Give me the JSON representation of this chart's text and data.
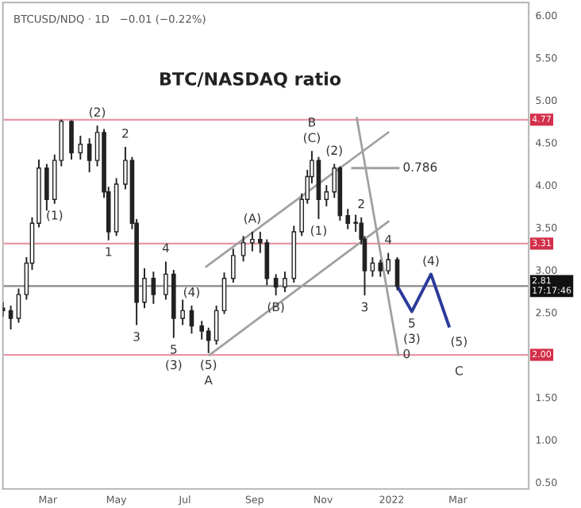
{
  "chart_data": {
    "type": "candlestick",
    "title": "BTC/NASDAQ ratio",
    "subtitle": "BTCUSD/NDQ · 1D   −0.01 (−0.22%)",
    "color": "#222222",
    "x": [
      "2021-01-20",
      "2021-01-27",
      "2021-02-03",
      "2021-02-10",
      "2021-02-15",
      "2021-02-21",
      "2021-02-28",
      "2021-03-07",
      "2021-03-13",
      "2021-03-22",
      "2021-03-30",
      "2021-04-07",
      "2021-04-14",
      "2021-04-20",
      "2021-04-24",
      "2021-05-01",
      "2021-05-09",
      "2021-05-15",
      "2021-05-19",
      "2021-05-26",
      "2021-06-03",
      "2021-06-14",
      "2021-06-21",
      "2021-06-29",
      "2021-07-07",
      "2021-07-16",
      "2021-07-22",
      "2021-07-29",
      "2021-08-05",
      "2021-08-13",
      "2021-08-22",
      "2021-08-30",
      "2021-09-06",
      "2021-09-12",
      "2021-09-20",
      "2021-09-28",
      "2021-10-06",
      "2021-10-13",
      "2021-10-18",
      "2021-10-22",
      "2021-10-28",
      "2021-11-04",
      "2021-11-11",
      "2021-11-16",
      "2021-11-23",
      "2021-11-30",
      "2021-12-05",
      "2021-12-08",
      "2021-12-15",
      "2021-12-22",
      "2021-12-29",
      "2022-01-06"
    ],
    "ohlc": [
      [
        2.55,
        2.62,
        2.45,
        2.52
      ],
      [
        2.52,
        2.58,
        2.3,
        2.43
      ],
      [
        2.43,
        2.78,
        2.38,
        2.71
      ],
      [
        2.71,
        3.15,
        2.65,
        3.08
      ],
      [
        3.08,
        3.62,
        3.0,
        3.55
      ],
      [
        3.55,
        4.3,
        3.5,
        4.2
      ],
      [
        4.2,
        4.25,
        3.7,
        3.83
      ],
      [
        3.83,
        4.36,
        3.78,
        4.29
      ],
      [
        4.29,
        4.77,
        4.22,
        4.75
      ],
      [
        4.75,
        4.76,
        4.3,
        4.38
      ],
      [
        4.38,
        4.58,
        4.3,
        4.48
      ],
      [
        4.48,
        4.55,
        4.15,
        4.29
      ],
      [
        4.29,
        4.7,
        4.22,
        4.62
      ],
      [
        4.62,
        4.66,
        3.85,
        3.92
      ],
      [
        3.92,
        3.98,
        3.35,
        3.45
      ],
      [
        3.45,
        4.08,
        3.4,
        4.01
      ],
      [
        4.01,
        4.45,
        3.95,
        4.29
      ],
      [
        4.29,
        4.33,
        3.48,
        3.55
      ],
      [
        3.55,
        3.6,
        2.35,
        2.62
      ],
      [
        2.62,
        3.02,
        2.55,
        2.9
      ],
      [
        2.9,
        2.98,
        2.6,
        2.71
      ],
      [
        2.71,
        3.1,
        2.65,
        2.95
      ],
      [
        2.95,
        3.0,
        2.2,
        2.43
      ],
      [
        2.43,
        2.65,
        2.35,
        2.52
      ],
      [
        2.52,
        2.58,
        2.25,
        2.34
      ],
      [
        2.34,
        2.4,
        2.18,
        2.28
      ],
      [
        2.28,
        2.32,
        2.02,
        2.17
      ],
      [
        2.17,
        2.58,
        2.12,
        2.52
      ],
      [
        2.52,
        2.97,
        2.48,
        2.9
      ],
      [
        2.9,
        3.25,
        2.85,
        3.17
      ],
      [
        3.17,
        3.4,
        3.1,
        3.32
      ],
      [
        3.32,
        3.45,
        3.22,
        3.36
      ],
      [
        3.36,
        3.45,
        3.2,
        3.32
      ],
      [
        3.32,
        3.36,
        2.82,
        2.9
      ],
      [
        2.9,
        2.95,
        2.7,
        2.8
      ],
      [
        2.8,
        2.98,
        2.74,
        2.9
      ],
      [
        2.9,
        3.52,
        2.85,
        3.45
      ],
      [
        3.45,
        3.9,
        3.4,
        3.83
      ],
      [
        3.83,
        4.18,
        3.78,
        4.1
      ],
      [
        4.1,
        4.4,
        4.02,
        4.29
      ],
      [
        4.29,
        4.33,
        3.6,
        3.83
      ],
      [
        3.83,
        4.0,
        3.75,
        3.92
      ],
      [
        3.92,
        4.25,
        3.85,
        4.2
      ],
      [
        4.2,
        4.22,
        3.58,
        3.64
      ],
      [
        3.64,
        3.72,
        3.48,
        3.55
      ],
      [
        3.55,
        3.65,
        3.45,
        3.55
      ],
      [
        3.55,
        3.62,
        3.3,
        3.36
      ],
      [
        3.36,
        3.4,
        2.7,
        2.99
      ],
      [
        2.99,
        3.15,
        2.92,
        3.08
      ],
      [
        3.08,
        3.12,
        2.92,
        2.99
      ],
      [
        2.99,
        3.2,
        2.95,
        3.12
      ],
      [
        3.12,
        3.15,
        2.76,
        2.81
      ]
    ],
    "series": [
      {
        "type": "line",
        "color": "#a0a0a0",
        "x": [
          "2021-07-23",
          "2021-12-29"
        ],
        "values": [
          2.0,
          3.57
        ]
      },
      {
        "type": "line",
        "color": "#a0a0a0",
        "x": [
          "2021-07-20",
          "2021-12-29"
        ],
        "values": [
          3.04,
          4.62
        ]
      },
      {
        "type": "line",
        "color": "#a0a0a0",
        "x": [
          "2021-12-01",
          "2022-01-07"
        ],
        "values": [
          4.79,
          2.0
        ]
      },
      {
        "type": "line",
        "color": "#a0a0a0",
        "x": [
          "2021-11-27",
          "2022-01-07"
        ],
        "values": [
          4.2,
          4.2
        ]
      },
      {
        "type": "line",
        "color": "#2a3a9a",
        "x": [
          "2022-01-06",
          "2022-01-19",
          "2022-02-05",
          "2022-02-21"
        ],
        "values": [
          2.81,
          2.51,
          2.95,
          2.34
        ]
      }
    ],
    "ref_lines": [
      {
        "axis": "y",
        "value": 4.77,
        "label": "4.77",
        "color": "#d32f4a"
      },
      {
        "axis": "y",
        "value": 3.31,
        "label": "3.31",
        "color": "#d32f4a"
      },
      {
        "axis": "y",
        "value": 2.0,
        "label": "2.00",
        "color": "#d32f4a"
      },
      {
        "axis": "y",
        "value": 2.81,
        "label": "2.81\n17:17:46",
        "color": "#111111"
      }
    ],
    "annotations": [
      {
        "text": "(2)",
        "x": "2021-04-14",
        "y": 4.7
      },
      {
        "text": "(1)",
        "x": "2021-03-07",
        "y": 3.78
      },
      {
        "text": "2",
        "x": "2021-05-09",
        "y": 4.45
      },
      {
        "text": "1",
        "x": "2021-04-24",
        "y": 3.35
      },
      {
        "text": "3",
        "x": "2021-05-19",
        "y": 2.35
      },
      {
        "text": "4",
        "x": "2021-06-14",
        "y": 3.1
      },
      {
        "text": "5",
        "x": "2021-06-21",
        "y": 2.2
      },
      {
        "text": "(3)",
        "x": "2021-06-21",
        "y": 2.2
      },
      {
        "text": "(4)",
        "x": "2021-07-07",
        "y": 2.58
      },
      {
        "text": "(5)",
        "x": "2021-07-22",
        "y": 2.02
      },
      {
        "text": "A",
        "x": "2021-07-22",
        "y": 2.02
      },
      {
        "text": "(A)",
        "x": "2021-08-30",
        "y": 3.45
      },
      {
        "text": "(B)",
        "x": "2021-09-20",
        "y": 2.7
      },
      {
        "text": "(C)",
        "x": "2021-10-22",
        "y": 4.4
      },
      {
        "text": "B",
        "x": "2021-10-22",
        "y": 4.4
      },
      {
        "text": "(2)",
        "x": "2021-11-11",
        "y": 4.25
      },
      {
        "text": "(1)",
        "x": "2021-10-28",
        "y": 3.6
      },
      {
        "text": "2",
        "x": "2021-12-05",
        "y": 3.62
      },
      {
        "text": "3",
        "x": "2021-12-08",
        "y": 2.7
      },
      {
        "text": "4",
        "x": "2021-12-29",
        "y": 3.2
      },
      {
        "text": "(4)",
        "x": "2022-02-05",
        "y": 2.95
      },
      {
        "text": "5",
        "x": "2022-01-19",
        "y": 2.51
      },
      {
        "text": "(3)",
        "x": "2022-01-19",
        "y": 2.51
      },
      {
        "text": "(5)",
        "x": "2022-03-02",
        "y": 2.0
      },
      {
        "text": "C",
        "x": "2022-03-02",
        "y": 2.0
      },
      {
        "text": "0.786",
        "x": "2022-01-07",
        "y": 4.2
      },
      {
        "text": "0",
        "x": "2022-01-07",
        "y": 2.0
      }
    ],
    "xlim": [
      "2021-01-20",
      "2022-05-03"
    ],
    "xticks": [
      {
        "value": "2021-03-01",
        "label": "Mar"
      },
      {
        "value": "2021-05-01",
        "label": "May"
      },
      {
        "value": "2021-07-01",
        "label": "Jul"
      },
      {
        "value": "2021-09-01",
        "label": "Sep"
      },
      {
        "value": "2021-11-01",
        "label": "Nov"
      },
      {
        "value": "2022-01-01",
        "label": "2022"
      },
      {
        "value": "2022-03-01",
        "label": "Mar"
      }
    ],
    "ylim": [
      0.42,
      6.15
    ],
    "yticks": [
      {
        "value": 0.5,
        "label": "0.50"
      },
      {
        "value": 1.0,
        "label": "1.00"
      },
      {
        "value": 1.5,
        "label": "1.50"
      },
      {
        "value": 2.0,
        "label": null
      },
      {
        "value": 2.5,
        "label": "2.50"
      },
      {
        "value": 3.0,
        "label": "3.00"
      },
      {
        "value": 3.5,
        "label": "3.50"
      },
      {
        "value": 4.0,
        "label": "4.00"
      },
      {
        "value": 4.5,
        "label": "4.50"
      },
      {
        "value": 5.0,
        "label": "5.00"
      },
      {
        "value": 5.5,
        "label": "5.50"
      },
      {
        "value": 6.0,
        "label": "6.00"
      }
    ],
    "grid": false,
    "legend": false
  }
}
